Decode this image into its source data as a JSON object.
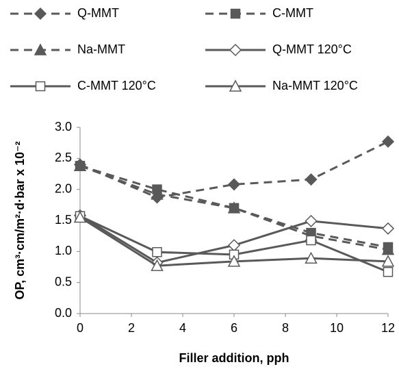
{
  "chart_data": {
    "type": "line",
    "x_label": "Filler addition, pph",
    "y_label": "OP, cm³·cm/m²·d·bar x 10⁻²",
    "x": [
      0,
      3,
      6,
      9,
      12
    ],
    "xlim": [
      0,
      12
    ],
    "xticks": [
      0,
      2,
      4,
      6,
      8,
      10,
      12
    ],
    "ylim": [
      0,
      3
    ],
    "yticks": [
      {
        "value": 0,
        "label": "0.0"
      },
      0.5,
      {
        "value": 1,
        "label": "1.0"
      },
      1.5,
      {
        "value": 2,
        "label": "2.0"
      },
      2.5,
      {
        "value": 3,
        "label": "3.0"
      }
    ],
    "series": [
      {
        "name": "Q-MMT",
        "color": "#595959",
        "dashed": true,
        "marker": "diamond",
        "marker_fill": "#595959",
        "values": [
          2.4,
          1.87,
          2.08,
          2.16,
          2.77
        ]
      },
      {
        "name": "C-MMT",
        "color": "#595959",
        "dashed": true,
        "marker": "square",
        "marker_fill": "#595959",
        "values": [
          2.38,
          2.0,
          1.7,
          1.3,
          1.07
        ]
      },
      {
        "name": "Na-MMT",
        "color": "#595959",
        "dashed": true,
        "marker": "triangle",
        "marker_fill": "#595959",
        "values": [
          2.38,
          1.92,
          1.7,
          1.25,
          1.03
        ]
      },
      {
        "name": "Q-MMT 120°C",
        "color": "#595959",
        "dashed": false,
        "marker": "diamond",
        "marker_fill": "#ffffff",
        "values": [
          1.58,
          0.82,
          1.1,
          1.49,
          1.37
        ]
      },
      {
        "name": "C-MMT 120°C",
        "color": "#595959",
        "dashed": false,
        "marker": "square",
        "marker_fill": "#ffffff",
        "values": [
          1.57,
          0.99,
          0.95,
          1.18,
          0.67
        ]
      },
      {
        "name": "Na-MMT 120°C",
        "color": "#595959",
        "dashed": false,
        "marker": "triangle",
        "marker_fill": "#ffffff",
        "values": [
          1.55,
          0.77,
          0.84,
          0.89,
          0.84
        ]
      }
    ]
  }
}
